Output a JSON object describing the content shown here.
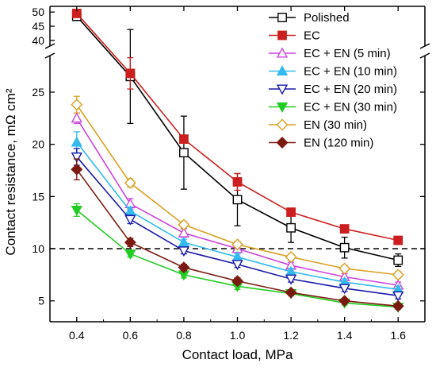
{
  "chart_data": {
    "type": "line",
    "xlabel": "Contact load, MPa",
    "ylabel": "Contact resistance, mΩ cm²",
    "x": [
      0.4,
      0.6,
      0.8,
      1.0,
      1.2,
      1.4,
      1.6
    ],
    "x_ticks": [
      "0.4",
      "0.6",
      "0.8",
      "1.0",
      "1.2",
      "1.4",
      "1.6"
    ],
    "xlim": [
      0.3,
      1.7
    ],
    "ylim_lower": [
      3,
      28.5
    ],
    "ylim_upper": [
      38,
      52
    ],
    "axis_break": "y between 28.5 and 38",
    "y_ticks_lower": [
      "5",
      "10",
      "15",
      "20",
      "25"
    ],
    "y_ticks_upper": [
      "40",
      "45",
      "50"
    ],
    "reference_line": {
      "y": 10,
      "style": "dashed"
    },
    "legend_position": "top-right",
    "series": [
      {
        "name": "Polished",
        "color": "#000000",
        "marker": "square-open",
        "values": [
          48.5,
          26.5,
          19.2,
          14.7,
          12.0,
          10.1,
          8.9
        ],
        "errors": [
          1.5,
          4.5,
          3.5,
          2.5,
          1.4,
          1.0,
          0.6
        ]
      },
      {
        "name": "EC",
        "color": "#cc1f1f",
        "marker": "square-filled",
        "values": [
          49.5,
          26.8,
          20.5,
          16.4,
          13.5,
          11.9,
          10.8
        ],
        "errors": [
          0.8,
          1.5,
          0.3,
          0.8,
          0.3,
          0.2,
          0.3
        ]
      },
      {
        "name": "EC + EN (5 min)",
        "color": "#cc44dd",
        "marker": "triangle-up-open",
        "values": [
          22.5,
          14.3,
          11.5,
          10.0,
          8.4,
          7.3,
          6.5
        ],
        "errors": [
          0.5,
          0.5,
          0.4,
          0.3,
          0.3,
          0.3,
          0.3
        ]
      },
      {
        "name": "EC + EN (10 min)",
        "color": "#33bbee",
        "marker": "triangle-up-filled",
        "values": [
          20.2,
          13.6,
          10.6,
          9.2,
          7.8,
          6.8,
          6.1
        ],
        "errors": [
          1.0,
          0.4,
          0.3,
          0.3,
          0.3,
          0.3,
          0.3
        ]
      },
      {
        "name": "EC + EN (20 min)",
        "color": "#1a1aa8",
        "marker": "triangle-down-open",
        "values": [
          18.8,
          12.8,
          9.8,
          8.5,
          7.1,
          6.2,
          5.5
        ],
        "errors": [
          0.8,
          0.4,
          0.3,
          0.3,
          0.3,
          0.3,
          0.3
        ]
      },
      {
        "name": "EC + EN (30 min)",
        "color": "#22cc22",
        "marker": "triangle-down-filled",
        "values": [
          13.7,
          9.5,
          7.5,
          6.4,
          5.7,
          4.8,
          4.4
        ],
        "errors": [
          0.6,
          0.3,
          0.3,
          0.3,
          0.2,
          0.2,
          0.2
        ]
      },
      {
        "name": "EN (30 min)",
        "color": "#d9a020",
        "marker": "diamond-open",
        "values": [
          23.8,
          16.3,
          12.3,
          10.4,
          9.2,
          8.1,
          7.5
        ],
        "errors": [
          0.8,
          0.4,
          0.3,
          0.3,
          0.3,
          0.3,
          0.3
        ]
      },
      {
        "name": "EN (120 min)",
        "color": "#7a1a10",
        "marker": "diamond-filled",
        "values": [
          17.6,
          10.6,
          8.2,
          6.9,
          5.8,
          5.0,
          4.5
        ],
        "errors": [
          1.0,
          0.4,
          0.3,
          0.3,
          0.2,
          0.2,
          0.2
        ]
      }
    ]
  }
}
